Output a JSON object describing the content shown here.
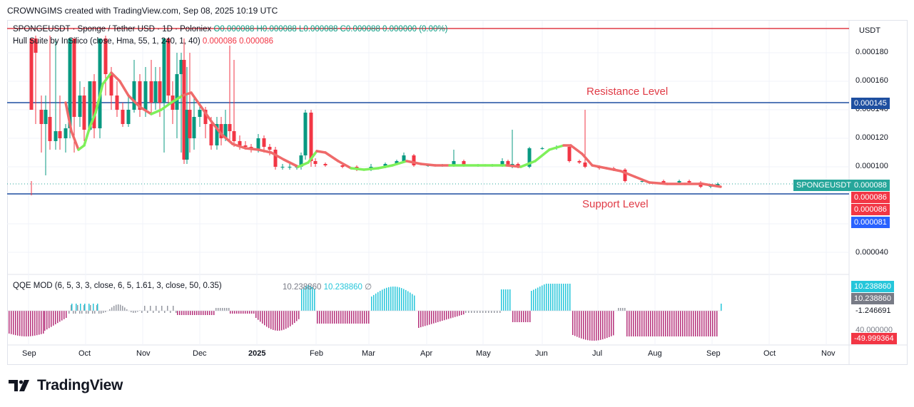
{
  "header": {
    "credit": "CROWNGIMS created with TradingView.com, Sep 08, 2025 10:19 UTC"
  },
  "legend": {
    "symbol": "SPONGEUSDT · Sponge / Tether USD · 1D · Poloniex",
    "ohlc": "O0.000088  H0.000088  L0.000088  C0.000088  0.000000 (0.00%)",
    "indicator": "Hull Suite by InSilico (close, Hma, 55, 1, 240, 1, 40)",
    "indicator_v1": "0.000086",
    "indicator_v2": "0.000086",
    "qqe": "QQE MOD (6, 5, 3, 3, close, 6, 5, 1.61, 3, close, 50, 0.35)",
    "qqe_v1": "10.238860",
    "qqe_v2": "10.238860",
    "qqe_v3": "∅"
  },
  "annotations": {
    "resistance": "Resistance Level",
    "support": "Support Level"
  },
  "price_axis": {
    "currency": "USDT",
    "ticks": [
      "0.000180",
      "0.000160",
      "0.000140",
      "0.000120",
      "0.000100",
      "0.000040"
    ],
    "tags": {
      "resistance": "0.000145",
      "symbol_name": "SPONGEUSDT",
      "last": "0.000088",
      "hull1": "0.000086",
      "hull2": "0.000086",
      "support": "0.000081"
    }
  },
  "qqe_axis": {
    "tags": [
      "10.238860",
      "10.238860",
      "-1.246691",
      "-49.999364"
    ],
    "tick": "40.000000"
  },
  "time_axis": {
    "labels": [
      "Sep",
      "Oct",
      "Nov",
      "Dec",
      "2025",
      "Feb",
      "Mar",
      "Apr",
      "May",
      "Jun",
      "Jul",
      "Aug",
      "Sep",
      "Oct",
      "Nov"
    ]
  },
  "brand": "TradingView",
  "colors": {
    "up": "#089981",
    "down": "#f23645",
    "hull_up": "#7ef05a",
    "hull_down": "#ef6a6a",
    "support": "#2962ff",
    "resistance_line": "#e03a45",
    "h_line": "#1e4fa0"
  },
  "chart_data": {
    "type": "line",
    "title": "SPONGEUSDT · Sponge / Tether USD · 1D · Poloniex",
    "xlabel": "",
    "ylabel": "",
    "x": [
      "Sep",
      "Oct",
      "Nov",
      "Dec",
      "2025",
      "Feb",
      "Mar",
      "Apr",
      "May",
      "Jun",
      "Jul",
      "Aug",
      "Sep"
    ],
    "series": [
      {
        "name": "Hull Suite by InSilico (close, Hma, 55, 1, 240, 1, 40)",
        "values": [
          0.000122,
          0.000112,
          0.00014,
          0.00015,
          0.000112,
          0.000108,
          9.8e-05,
          0.000102,
          0.0001,
          0.000115,
          9.8e-05,
          8.8e-05,
          8.6e-05
        ]
      }
    ],
    "levels": {
      "resistance": 0.000145,
      "support": 8.1e-05
    },
    "ylim": [
      3e-05,
      0.00019
    ],
    "last_price": 8.8e-05
  }
}
